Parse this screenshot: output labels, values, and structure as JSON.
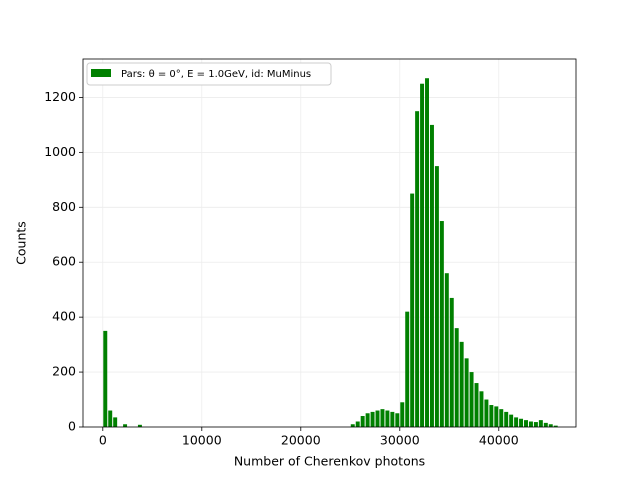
{
  "chart_data": {
    "type": "histogram",
    "xlabel": "Number of Cherenkov photons",
    "ylabel": "Counts",
    "series": [
      {
        "name": "Pars: θ = 0°, E = 1.0GeV, id: MuMinus",
        "color": "#008000",
        "bins": [
          0,
          500,
          1000,
          1500,
          2000,
          2500,
          3000,
          3500,
          4000,
          4500,
          5000,
          5500,
          6000,
          6500,
          7000,
          7500,
          8000,
          8500,
          9000,
          9500,
          10000,
          10500,
          11000,
          11500,
          12000,
          12500,
          13000,
          13500,
          14000,
          14500,
          15000,
          15500,
          16000,
          16500,
          17000,
          17500,
          18000,
          18500,
          19000,
          19500,
          20000,
          20500,
          21000,
          21500,
          22000,
          22500,
          23000,
          23500,
          24000,
          24500,
          25000,
          25500,
          26000,
          26500,
          27000,
          27500,
          28000,
          28500,
          29000,
          29500,
          30000,
          30500,
          31000,
          31500,
          32000,
          32500,
          33000,
          33500,
          34000,
          34500,
          35000,
          35500,
          36000,
          36500,
          37000,
          37500,
          38000,
          38500,
          39000,
          39500,
          40000,
          40500,
          41000,
          41500,
          42000,
          42500,
          43000,
          43500,
          44000,
          44500,
          45000,
          45500,
          46000
        ],
        "values": [
          350,
          60,
          35,
          0,
          10,
          0,
          0,
          8,
          0,
          0,
          0,
          0,
          0,
          0,
          0,
          0,
          0,
          0,
          0,
          0,
          0,
          0,
          0,
          0,
          0,
          0,
          0,
          0,
          0,
          0,
          0,
          0,
          0,
          0,
          0,
          0,
          0,
          0,
          0,
          0,
          0,
          0,
          0,
          0,
          0,
          0,
          0,
          0,
          0,
          0,
          10,
          20,
          40,
          50,
          55,
          60,
          65,
          60,
          55,
          50,
          90,
          420,
          850,
          1150,
          1250,
          1270,
          1100,
          950,
          750,
          560,
          470,
          360,
          310,
          250,
          200,
          160,
          130,
          100,
          80,
          75,
          65,
          55,
          45,
          35,
          30,
          25,
          20,
          18,
          25,
          15,
          10,
          5
        ]
      }
    ],
    "xlim": [
      -2000,
      47800
    ],
    "ylim": [
      0,
      1340
    ],
    "xticks": [
      0,
      10000,
      20000,
      30000,
      40000
    ],
    "yticks": [
      0,
      200,
      400,
      600,
      800,
      1000,
      1200
    ],
    "grid": true,
    "legend": "upper left"
  }
}
